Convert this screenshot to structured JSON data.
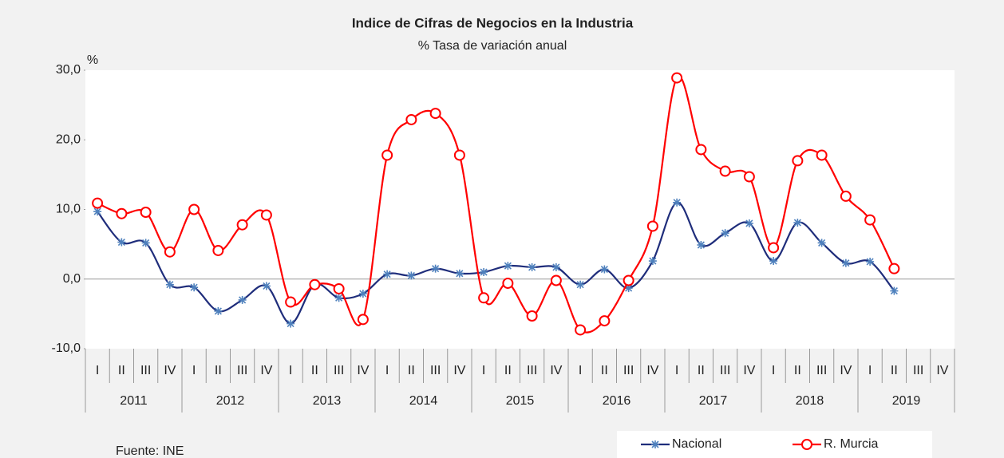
{
  "chart_data": {
    "type": "line",
    "title": "Indice de Cifras de Negocios en la Industria",
    "subtitle": "% Tasa de variación anual",
    "y_label": "%",
    "source": "Fuente: INE",
    "categories": [
      "I",
      "II",
      "III",
      "IV",
      "I",
      "II",
      "III",
      "IV",
      "I",
      "II",
      "III",
      "IV",
      "I",
      "II",
      "III",
      "IV",
      "I",
      "II",
      "III",
      "IV",
      "I",
      "II",
      "III",
      "IV",
      "I",
      "II",
      "III",
      "IV",
      "I",
      "II",
      "III",
      "IV",
      "I",
      "II",
      "III",
      "IV"
    ],
    "years": [
      "2011",
      "2012",
      "2013",
      "2014",
      "2015",
      "2016",
      "2017",
      "2018",
      "2019"
    ],
    "series": [
      {
        "name": "Nacional",
        "color": "#1f2d7b",
        "marker_color": "#4f81bd",
        "marker": "asterisk",
        "values": [
          9.7,
          5.3,
          5.2,
          -0.8,
          -1.2,
          -4.6,
          -3.0,
          -1.0,
          -6.4,
          -0.8,
          -2.7,
          -2.1,
          0.7,
          0.5,
          1.5,
          0.8,
          1.0,
          1.9,
          1.7,
          1.7,
          -0.8,
          1.4,
          -1.3,
          2.6,
          11.0,
          4.9,
          6.6,
          8.0,
          2.6,
          8.1,
          5.2,
          2.3,
          2.5,
          -1.7,
          null,
          null
        ]
      },
      {
        "name": "R. Murcia",
        "color": "#ff0000",
        "marker_color": "#ff0000",
        "marker": "circle",
        "values": [
          10.9,
          9.4,
          9.6,
          3.9,
          10.0,
          4.1,
          7.8,
          9.2,
          -3.3,
          -0.8,
          -1.4,
          -5.8,
          17.8,
          22.9,
          23.8,
          17.8,
          -2.7,
          -0.6,
          -5.3,
          -0.2,
          -7.3,
          -6.0,
          -0.2,
          7.6,
          28.9,
          18.6,
          15.5,
          14.7,
          4.5,
          17.0,
          17.8,
          11.9,
          8.5,
          1.5,
          null,
          null
        ]
      }
    ],
    "ylim": [
      -10,
      30
    ],
    "yticks": [
      {
        "value": -10,
        "label": "-10,0"
      },
      {
        "value": 0,
        "label": "0,0"
      },
      {
        "value": 10,
        "label": "10,0"
      },
      {
        "value": 20,
        "label": "20,0"
      },
      {
        "value": 30,
        "label": "30,0"
      }
    ],
    "zero_line": true,
    "legend": "bottom-right"
  }
}
